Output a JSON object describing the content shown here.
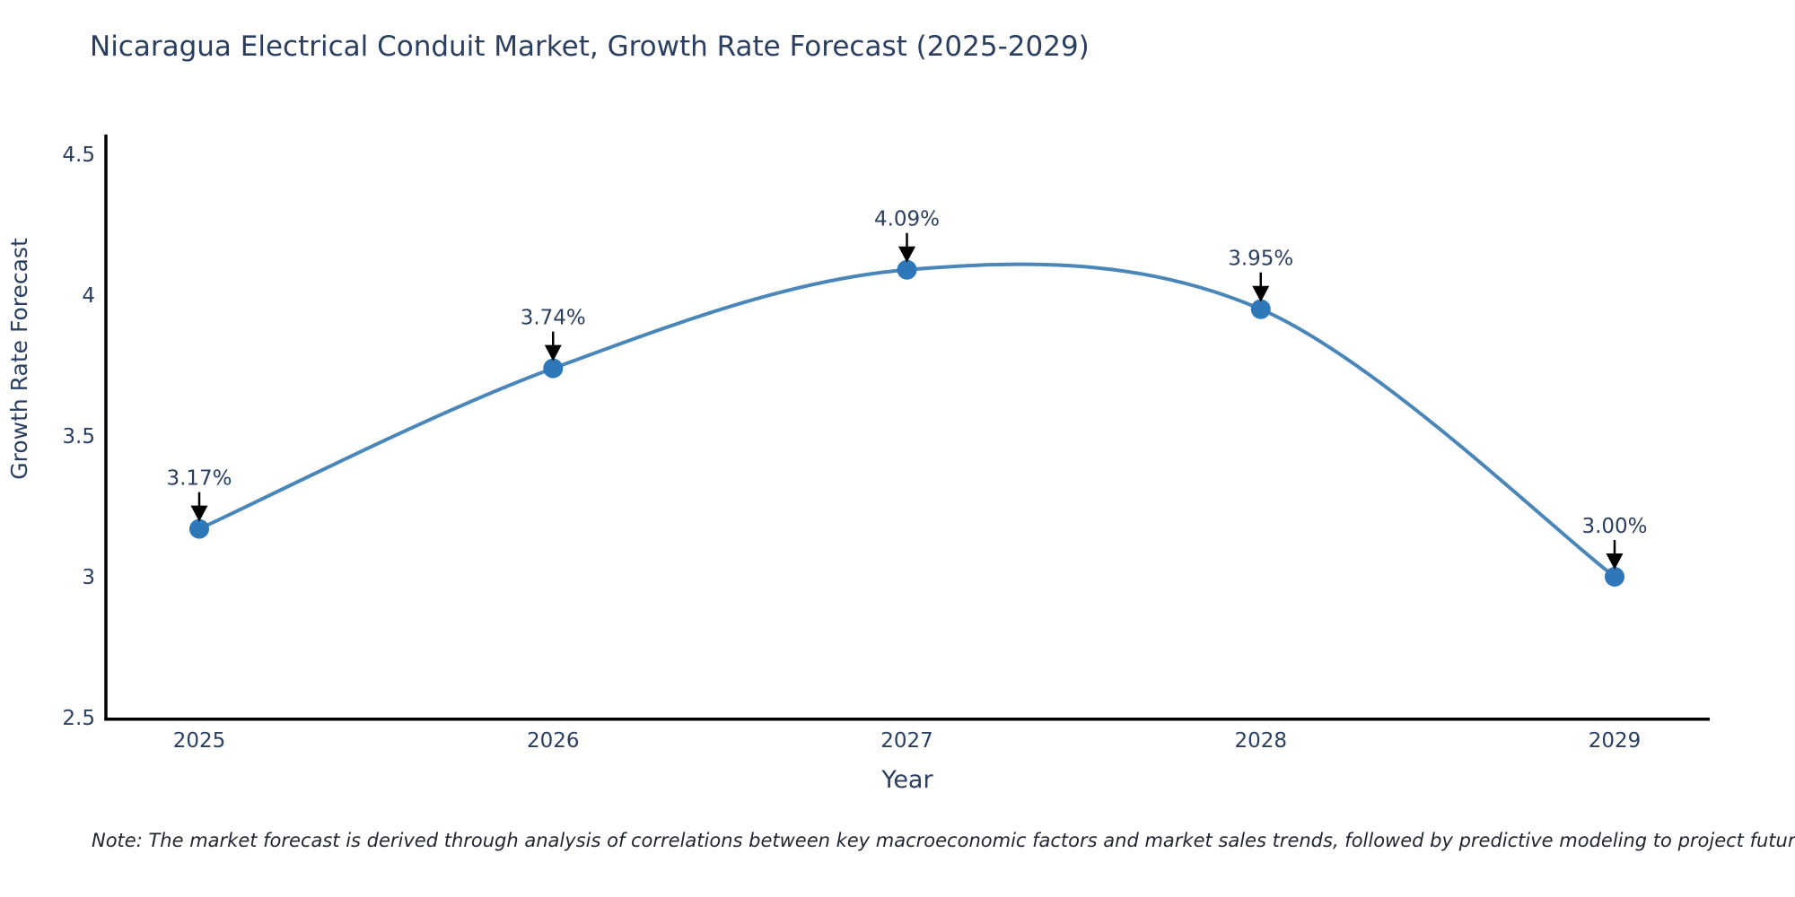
{
  "title": "Nicaragua Electrical Conduit Market, Growth Rate Forecast (2025-2029)",
  "note": "Note: The market forecast is derived through analysis of correlations between key macroeconomic factors and market sales trends, followed by predictive modeling to project future sales",
  "chart_data": {
    "type": "line",
    "title": "Nicaragua Electrical Conduit Market, Growth Rate Forecast (2025-2029)",
    "xlabel": "Year",
    "ylabel": "Growth Rate Forecast",
    "categories": [
      "2025",
      "2026",
      "2027",
      "2028",
      "2029"
    ],
    "series": [
      {
        "name": "Growth Rate Forecast",
        "values": [
          3.17,
          3.74,
          4.09,
          3.95,
          3.0
        ]
      }
    ],
    "point_labels": [
      "3.17%",
      "3.74%",
      "4.09%",
      "3.95%",
      "3.00%"
    ],
    "ylim": [
      2.5,
      4.5
    ],
    "yticks": [
      2.5,
      3,
      3.5,
      4,
      4.5
    ],
    "ytick_labels": [
      "2.5",
      "3",
      "3.5",
      "4",
      "4.5"
    ],
    "line_shape": "spline",
    "grid": false,
    "legend": "none",
    "annotations": "arrows-down-to-points",
    "colors": {
      "line": "#4a86b8",
      "marker": "#2e77b8",
      "axis": "#000000",
      "text": "#2a3f5f",
      "annotation_arrow": "#000000",
      "note_text": "#1f2430",
      "background": "#ffffff"
    }
  }
}
